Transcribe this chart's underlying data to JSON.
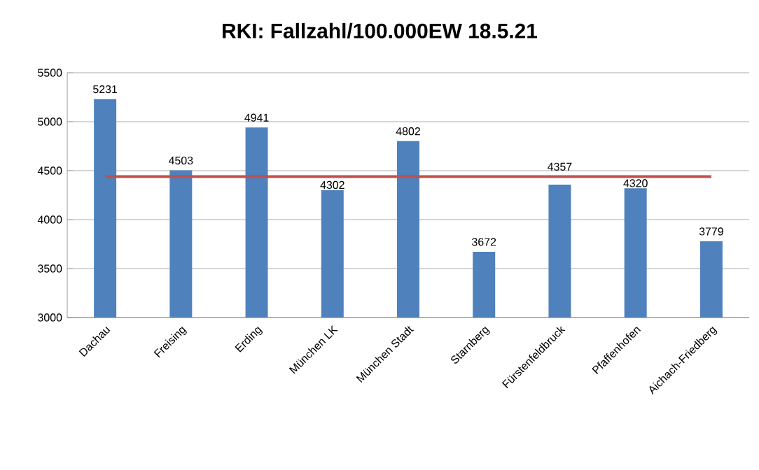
{
  "chart_data": {
    "type": "bar",
    "title": "RKI: Fallzahl/100.000EW 18.5.21",
    "categories": [
      "Dachau",
      "Freising",
      "Erding",
      "München LK",
      "München Stadt",
      "Starnberg",
      "Fürstenfeldbruck",
      "Pfaffenhofen",
      "Aichach-Friedberg"
    ],
    "series": [
      {
        "color": "#4f81bd",
        "values": [
          5231,
          4503,
          4941,
          4302,
          4802,
          3672,
          4357,
          4320,
          3779
        ],
        "data_labels": true
      },
      {
        "type": "line",
        "color": "#c0504d",
        "marker": "none",
        "values": [
          4440,
          4440,
          4440,
          4440,
          4440,
          4440,
          4440,
          4440,
          4440
        ]
      }
    ],
    "ylim": [
      3000,
      5500
    ],
    "yticks": [
      3000,
      3500,
      4000,
      4500,
      5000,
      5500
    ],
    "grid": "y"
  }
}
